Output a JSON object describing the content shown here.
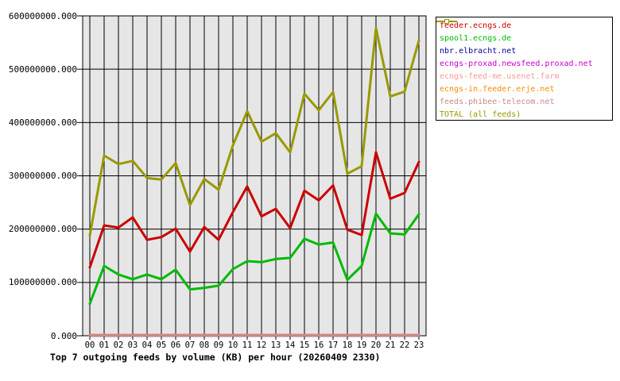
{
  "chart_data": {
    "type": "line",
    "title": "Top 7 outgoing feeds by volume (KB) per hour (20260409 2330)",
    "xlabel": "",
    "ylabel": "",
    "ylim": [
      0,
      600000000
    ],
    "grid": true,
    "plot_bg_color": "#e6e6e6",
    "grid_color": "#000000",
    "legend_position": "top-right-outside",
    "y_tick_labels_top_to_bottom": [
      "600000000.000",
      "500000000.000",
      "400000000.000",
      "300000000.000",
      "200000000.000",
      "100000000.000",
      "0.000"
    ],
    "x_labels": [
      "00",
      "01",
      "02",
      "03",
      "04",
      "05",
      "06",
      "07",
      "08",
      "09",
      "10",
      "11",
      "12",
      "13",
      "14",
      "15",
      "16",
      "17",
      "18",
      "19",
      "20",
      "21",
      "22",
      "23"
    ],
    "series": [
      {
        "name": "feeder.ecngs.de",
        "color": "#cc0000",
        "values": [
          128000000,
          207000000,
          203000000,
          222000000,
          180000000,
          185000000,
          201000000,
          158000000,
          204000000,
          180000000,
          232000000,
          280000000,
          224000000,
          238000000,
          202000000,
          272000000,
          254000000,
          282000000,
          199000000,
          189000000,
          344000000,
          257000000,
          268000000,
          326000000
        ]
      },
      {
        "name": "spool1.ecngs.de",
        "color": "#00bb00",
        "values": [
          60000000,
          131000000,
          115000000,
          106000000,
          115000000,
          106000000,
          124000000,
          87000000,
          90000000,
          94000000,
          125000000,
          140000000,
          138000000,
          144000000,
          146000000,
          182000000,
          171000000,
          175000000,
          105000000,
          131000000,
          229000000,
          192000000,
          190000000,
          228000000
        ]
      },
      {
        "name": "nbr.elbracht.net",
        "color": "#000099",
        "values": [
          500000,
          500000,
          500000,
          500000,
          500000,
          500000,
          500000,
          500000,
          500000,
          500000,
          500000,
          500000,
          500000,
          500000,
          500000,
          500000,
          500000,
          500000,
          500000,
          500000,
          500000,
          500000,
          500000,
          500000
        ]
      },
      {
        "name": "ecngs-proxad.newsfeed.proxad.net",
        "color": "#cc00cc",
        "values": [
          700000,
          700000,
          700000,
          700000,
          700000,
          700000,
          700000,
          700000,
          700000,
          700000,
          700000,
          700000,
          700000,
          700000,
          700000,
          700000,
          700000,
          700000,
          700000,
          700000,
          700000,
          700000,
          700000,
          700000
        ]
      },
      {
        "name": "ecngs-feed-me.usenet.farm",
        "color": "#ff9999",
        "values": [
          900000,
          900000,
          900000,
          900000,
          900000,
          900000,
          900000,
          900000,
          900000,
          900000,
          900000,
          900000,
          900000,
          900000,
          900000,
          900000,
          900000,
          900000,
          900000,
          900000,
          900000,
          900000,
          900000,
          900000
        ]
      },
      {
        "name": "ecngs-in.feeder.erje.net",
        "color": "#ff8800",
        "values": [
          1200000,
          1200000,
          1200000,
          1200000,
          1200000,
          1200000,
          1200000,
          1200000,
          1200000,
          1200000,
          1200000,
          1200000,
          1200000,
          1200000,
          1200000,
          1200000,
          1200000,
          1200000,
          1200000,
          1200000,
          1200000,
          1200000,
          1200000,
          1200000
        ]
      },
      {
        "name": "feeds.phibee-telecom.net",
        "color": "#cc8888",
        "values": [
          1500000,
          1500000,
          1500000,
          1500000,
          1500000,
          1500000,
          1500000,
          1500000,
          1500000,
          1500000,
          1500000,
          1500000,
          1500000,
          1500000,
          1500000,
          1500000,
          1500000,
          1500000,
          1500000,
          1500000,
          1500000,
          1500000,
          1500000,
          1500000
        ]
      },
      {
        "name": "TOTAL (all feeds)",
        "color": "#999900",
        "values": [
          188000000,
          338000000,
          322000000,
          328000000,
          296000000,
          293000000,
          324000000,
          245000000,
          294000000,
          274000000,
          357000000,
          421000000,
          364000000,
          380000000,
          344000000,
          454000000,
          423000000,
          457000000,
          304000000,
          318000000,
          577000000,
          449000000,
          458000000,
          554000000
        ]
      }
    ]
  }
}
